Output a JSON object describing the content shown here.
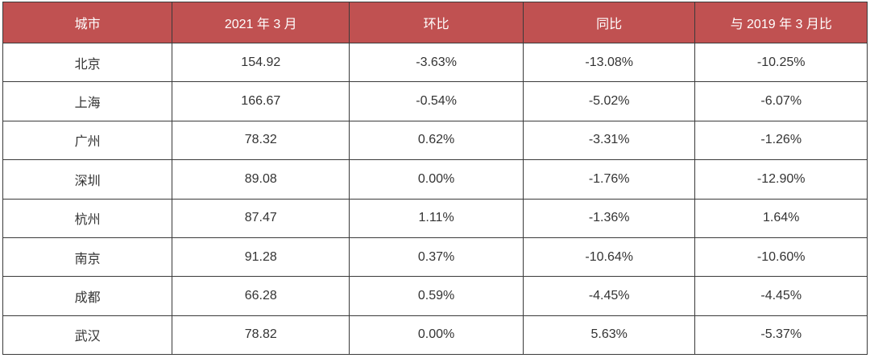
{
  "colors": {
    "header_bg": "#c05151",
    "header_text": "#ffffff",
    "body_text": "#333333",
    "border": "#3a3a3a",
    "page_bg": "#ffffff"
  },
  "chart_data": {
    "type": "table",
    "title": "",
    "columns": [
      "城市",
      "2021 年 3 月",
      "环比",
      "同比",
      "与 2019 年 3 月比"
    ],
    "rows": [
      [
        "北京",
        "154.92",
        "-3.63%",
        "-13.08%",
        "-10.25%"
      ],
      [
        "上海",
        "166.67",
        "-0.54%",
        "-5.02%",
        "-6.07%"
      ],
      [
        "广州",
        "78.32",
        "0.62%",
        "-3.31%",
        "-1.26%"
      ],
      [
        "深圳",
        "89.08",
        "0.00%",
        "-1.76%",
        "-12.90%"
      ],
      [
        "杭州",
        "87.47",
        "1.11%",
        "-1.36%",
        "1.64%"
      ],
      [
        "南京",
        "91.28",
        "0.37%",
        "-10.64%",
        "-10.60%"
      ],
      [
        "成都",
        "66.28",
        "0.59%",
        "-4.45%",
        "-4.45%"
      ],
      [
        "武汉",
        "78.82",
        "0.00%",
        "5.63%",
        "-5.37%"
      ]
    ]
  }
}
